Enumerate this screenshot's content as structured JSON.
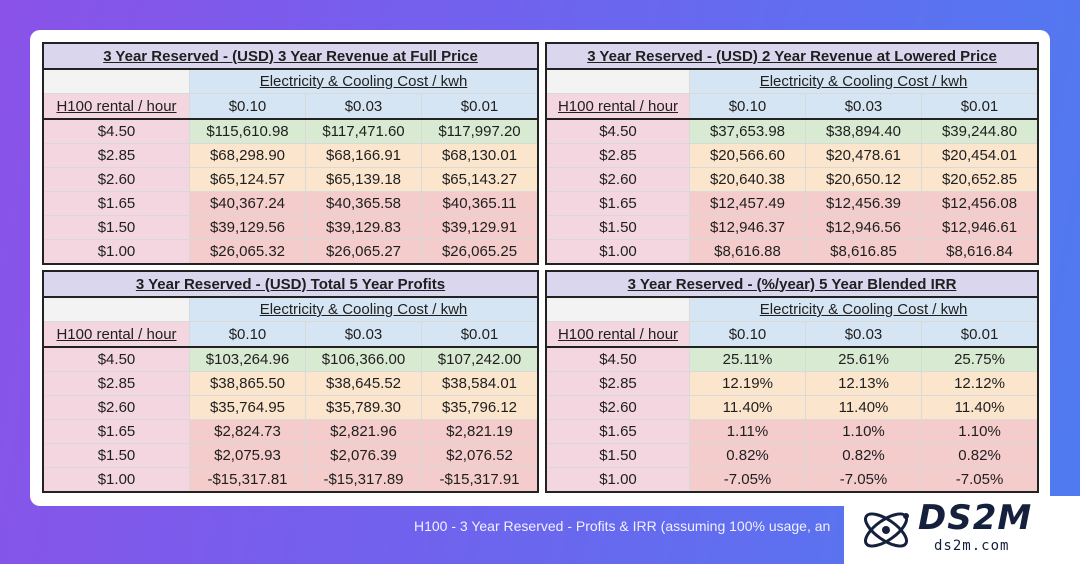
{
  "cost_header": "Electricity & Cooling Cost / kwh",
  "row_header": "H100 rental / hour",
  "cost_columns": [
    "$0.10",
    "$0.03",
    "$0.01"
  ],
  "rental_rates": [
    "$4.50",
    "$2.85",
    "$2.60",
    "$1.65",
    "$1.50",
    "$1.00"
  ],
  "tables": [
    {
      "title": "3 Year Reserved - (USD) 3 Year Revenue at Full Price",
      "rows": [
        [
          "$115,610.98",
          "$117,471.60",
          "$117,997.20"
        ],
        [
          "$68,298.90",
          "$68,166.91",
          "$68,130.01"
        ],
        [
          "$65,124.57",
          "$65,139.18",
          "$65,143.27"
        ],
        [
          "$40,367.24",
          "$40,365.58",
          "$40,365.11"
        ],
        [
          "$39,129.56",
          "$39,129.83",
          "$39,129.91"
        ],
        [
          "$26,065.32",
          "$26,065.27",
          "$26,065.25"
        ]
      ]
    },
    {
      "title": "3 Year Reserved - (USD) 2 Year Revenue at Lowered Price",
      "rows": [
        [
          "$37,653.98",
          "$38,894.40",
          "$39,244.80"
        ],
        [
          "$20,566.60",
          "$20,478.61",
          "$20,454.01"
        ],
        [
          "$20,640.38",
          "$20,650.12",
          "$20,652.85"
        ],
        [
          "$12,457.49",
          "$12,456.39",
          "$12,456.08"
        ],
        [
          "$12,946.37",
          "$12,946.56",
          "$12,946.61"
        ],
        [
          "$8,616.88",
          "$8,616.85",
          "$8,616.84"
        ]
      ]
    },
    {
      "title": "3 Year Reserved - (USD) Total 5 Year Profits",
      "rows": [
        [
          "$103,264.96",
          "$106,366.00",
          "$107,242.00"
        ],
        [
          "$38,865.50",
          "$38,645.52",
          "$38,584.01"
        ],
        [
          "$35,764.95",
          "$35,789.30",
          "$35,796.12"
        ],
        [
          "$2,824.73",
          "$2,821.96",
          "$2,821.19"
        ],
        [
          "$2,075.93",
          "$2,076.39",
          "$2,076.52"
        ],
        [
          "-$15,317.81",
          "-$15,317.89",
          "-$15,317.91"
        ]
      ]
    },
    {
      "title": "3 Year Reserved - (%/year) 5 Year Blended IRR",
      "rows": [
        [
          "25.11%",
          "25.61%",
          "25.75%"
        ],
        [
          "12.19%",
          "12.13%",
          "12.12%"
        ],
        [
          "11.40%",
          "11.40%",
          "11.40%"
        ],
        [
          "1.11%",
          "1.10%",
          "1.10%"
        ],
        [
          "0.82%",
          "0.82%",
          "0.82%"
        ],
        [
          "-7.05%",
          "-7.05%",
          "-7.05%"
        ]
      ]
    }
  ],
  "row_colors": [
    "green",
    "orange",
    "orange",
    "red",
    "red",
    "red"
  ],
  "colors": {
    "title_bg": "#d9d6ee",
    "header_blue": "#d6e5f3",
    "row_label_pink": "#f3d6df",
    "green": "#d9ead3",
    "orange": "#fce5cd",
    "red": "#f4cccc"
  },
  "caption": "H100 - 3 Year Reserved - Profits & IRR (assuming 100% usage, an",
  "logo": {
    "brand": "DS2M",
    "url": "ds2m.com",
    "icon": "atom-logo-icon"
  }
}
